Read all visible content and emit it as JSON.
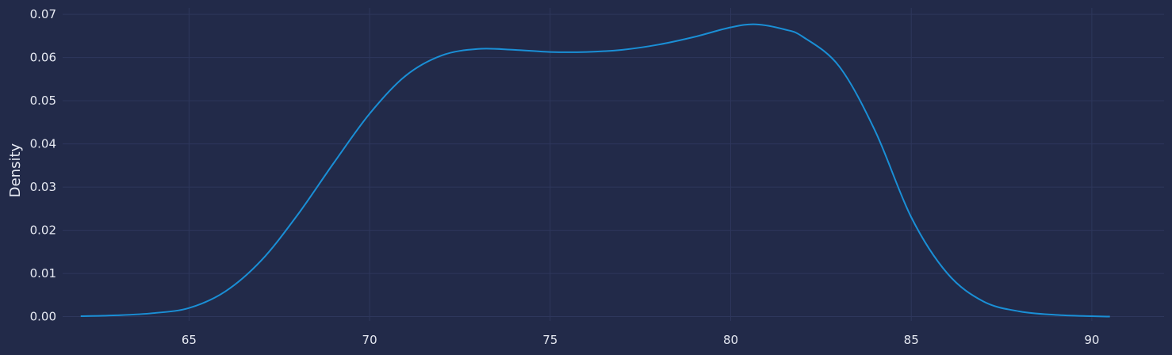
{
  "chart_data": {
    "type": "line",
    "title": "",
    "xlabel": "",
    "ylabel": "Density",
    "xlim": [
      61.5,
      92.0
    ],
    "ylim": [
      -0.001,
      0.0715
    ],
    "grid": true,
    "x_ticks": [
      65,
      70,
      75,
      80,
      85,
      90
    ],
    "y_ticks": [
      0.0,
      0.01,
      0.02,
      0.03,
      0.04,
      0.05,
      0.06,
      0.07
    ],
    "x_tick_labels": [
      "65",
      "70",
      "75",
      "80",
      "85",
      "90"
    ],
    "y_tick_labels": [
      "0.00",
      "0.01",
      "0.02",
      "0.03",
      "0.04",
      "0.05",
      "0.06",
      "0.07"
    ],
    "series": [
      {
        "color": "#1a8fd6",
        "x": [
          62.0,
          63.0,
          64.0,
          65.0,
          66.0,
          67.0,
          68.0,
          69.0,
          70.0,
          71.0,
          72.0,
          73.0,
          74.0,
          75.0,
          76.0,
          77.0,
          78.0,
          79.0,
          80.0,
          80.7,
          81.5,
          82.0,
          83.0,
          84.0,
          85.0,
          86.0,
          87.0,
          88.0,
          89.0,
          90.0,
          90.5
        ],
        "y": [
          0.0001,
          0.0003,
          0.0008,
          0.002,
          0.0058,
          0.013,
          0.0235,
          0.0355,
          0.047,
          0.0558,
          0.0605,
          0.062,
          0.0618,
          0.0613,
          0.0613,
          0.0618,
          0.063,
          0.0648,
          0.067,
          0.0677,
          0.0665,
          0.0648,
          0.058,
          0.043,
          0.023,
          0.01,
          0.0035,
          0.0012,
          0.0004,
          0.0001,
          0.0
        ]
      }
    ]
  }
}
